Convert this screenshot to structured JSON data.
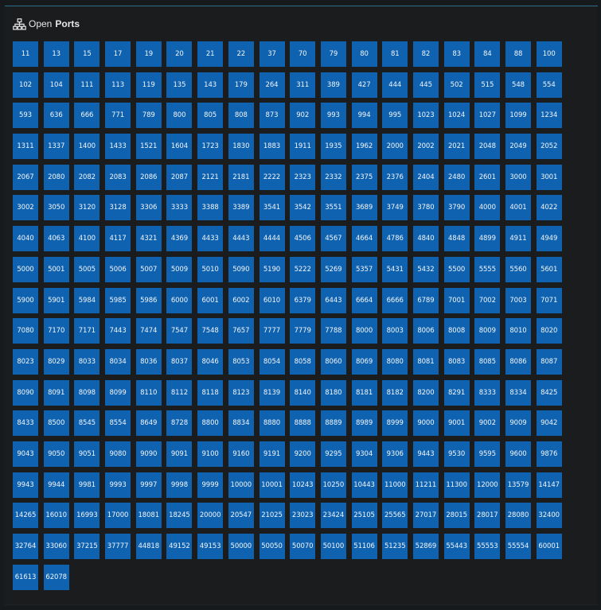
{
  "header": {
    "icon": "network-topology-icon",
    "title_prefix": "Open",
    "title_main": "Ports"
  },
  "colors": {
    "background": "#171a1d",
    "tile": "#0f62b0",
    "accent_line": "#2a6f86"
  },
  "ports": [
    "11",
    "13",
    "15",
    "17",
    "19",
    "20",
    "21",
    "22",
    "37",
    "70",
    "79",
    "80",
    "81",
    "82",
    "83",
    "84",
    "88",
    "100",
    "102",
    "104",
    "111",
    "113",
    "119",
    "135",
    "143",
    "179",
    "264",
    "311",
    "389",
    "427",
    "444",
    "445",
    "502",
    "515",
    "548",
    "554",
    "593",
    "636",
    "666",
    "771",
    "789",
    "800",
    "805",
    "808",
    "873",
    "902",
    "993",
    "994",
    "995",
    "1023",
    "1024",
    "1027",
    "1099",
    "1234",
    "1311",
    "1337",
    "1400",
    "1433",
    "1521",
    "1604",
    "1723",
    "1830",
    "1883",
    "1911",
    "1935",
    "1962",
    "2000",
    "2002",
    "2021",
    "2048",
    "2049",
    "2052",
    "2067",
    "2080",
    "2082",
    "2083",
    "2086",
    "2087",
    "2121",
    "2181",
    "2222",
    "2323",
    "2332",
    "2375",
    "2376",
    "2404",
    "2480",
    "2601",
    "3000",
    "3001",
    "3002",
    "3050",
    "3120",
    "3128",
    "3306",
    "3333",
    "3388",
    "3389",
    "3541",
    "3542",
    "3551",
    "3689",
    "3749",
    "3780",
    "3790",
    "4000",
    "4001",
    "4022",
    "4040",
    "4063",
    "4100",
    "4117",
    "4321",
    "4369",
    "4433",
    "4443",
    "4444",
    "4506",
    "4567",
    "4664",
    "4786",
    "4840",
    "4848",
    "4899",
    "4911",
    "4949",
    "5000",
    "5001",
    "5005",
    "5006",
    "5007",
    "5009",
    "5010",
    "5090",
    "5190",
    "5222",
    "5269",
    "5357",
    "5431",
    "5432",
    "5500",
    "5555",
    "5560",
    "5601",
    "5900",
    "5901",
    "5984",
    "5985",
    "5986",
    "6000",
    "6001",
    "6002",
    "6010",
    "6379",
    "6443",
    "6664",
    "6666",
    "6789",
    "7001",
    "7002",
    "7003",
    "7071",
    "7080",
    "7170",
    "7171",
    "7443",
    "7474",
    "7547",
    "7548",
    "7657",
    "7777",
    "7779",
    "7788",
    "8000",
    "8003",
    "8006",
    "8008",
    "8009",
    "8010",
    "8020",
    "8023",
    "8029",
    "8033",
    "8034",
    "8036",
    "8037",
    "8046",
    "8053",
    "8054",
    "8058",
    "8060",
    "8069",
    "8080",
    "8081",
    "8083",
    "8085",
    "8086",
    "8087",
    "8090",
    "8091",
    "8098",
    "8099",
    "8110",
    "8112",
    "8118",
    "8123",
    "8139",
    "8140",
    "8180",
    "8181",
    "8182",
    "8200",
    "8291",
    "8333",
    "8334",
    "8425",
    "8433",
    "8500",
    "8545",
    "8554",
    "8649",
    "8728",
    "8800",
    "8834",
    "8880",
    "8888",
    "8889",
    "8989",
    "8999",
    "9000",
    "9001",
    "9002",
    "9009",
    "9042",
    "9043",
    "9050",
    "9051",
    "9080",
    "9090",
    "9091",
    "9100",
    "9160",
    "9191",
    "9200",
    "9295",
    "9304",
    "9306",
    "9443",
    "9530",
    "9595",
    "9600",
    "9876",
    "9943",
    "9944",
    "9981",
    "9993",
    "9997",
    "9998",
    "9999",
    "10000",
    "10001",
    "10243",
    "10250",
    "10443",
    "11000",
    "11211",
    "11300",
    "12000",
    "13579",
    "14147",
    "14265",
    "16010",
    "16993",
    "17000",
    "18081",
    "18245",
    "20000",
    "20547",
    "21025",
    "23023",
    "23424",
    "25105",
    "25565",
    "27017",
    "28015",
    "28017",
    "28080",
    "32400",
    "32764",
    "33060",
    "37215",
    "37777",
    "44818",
    "49152",
    "49153",
    "50000",
    "50050",
    "50070",
    "50100",
    "51106",
    "51235",
    "52869",
    "55443",
    "55553",
    "55554",
    "60001",
    "61613",
    "62078"
  ]
}
